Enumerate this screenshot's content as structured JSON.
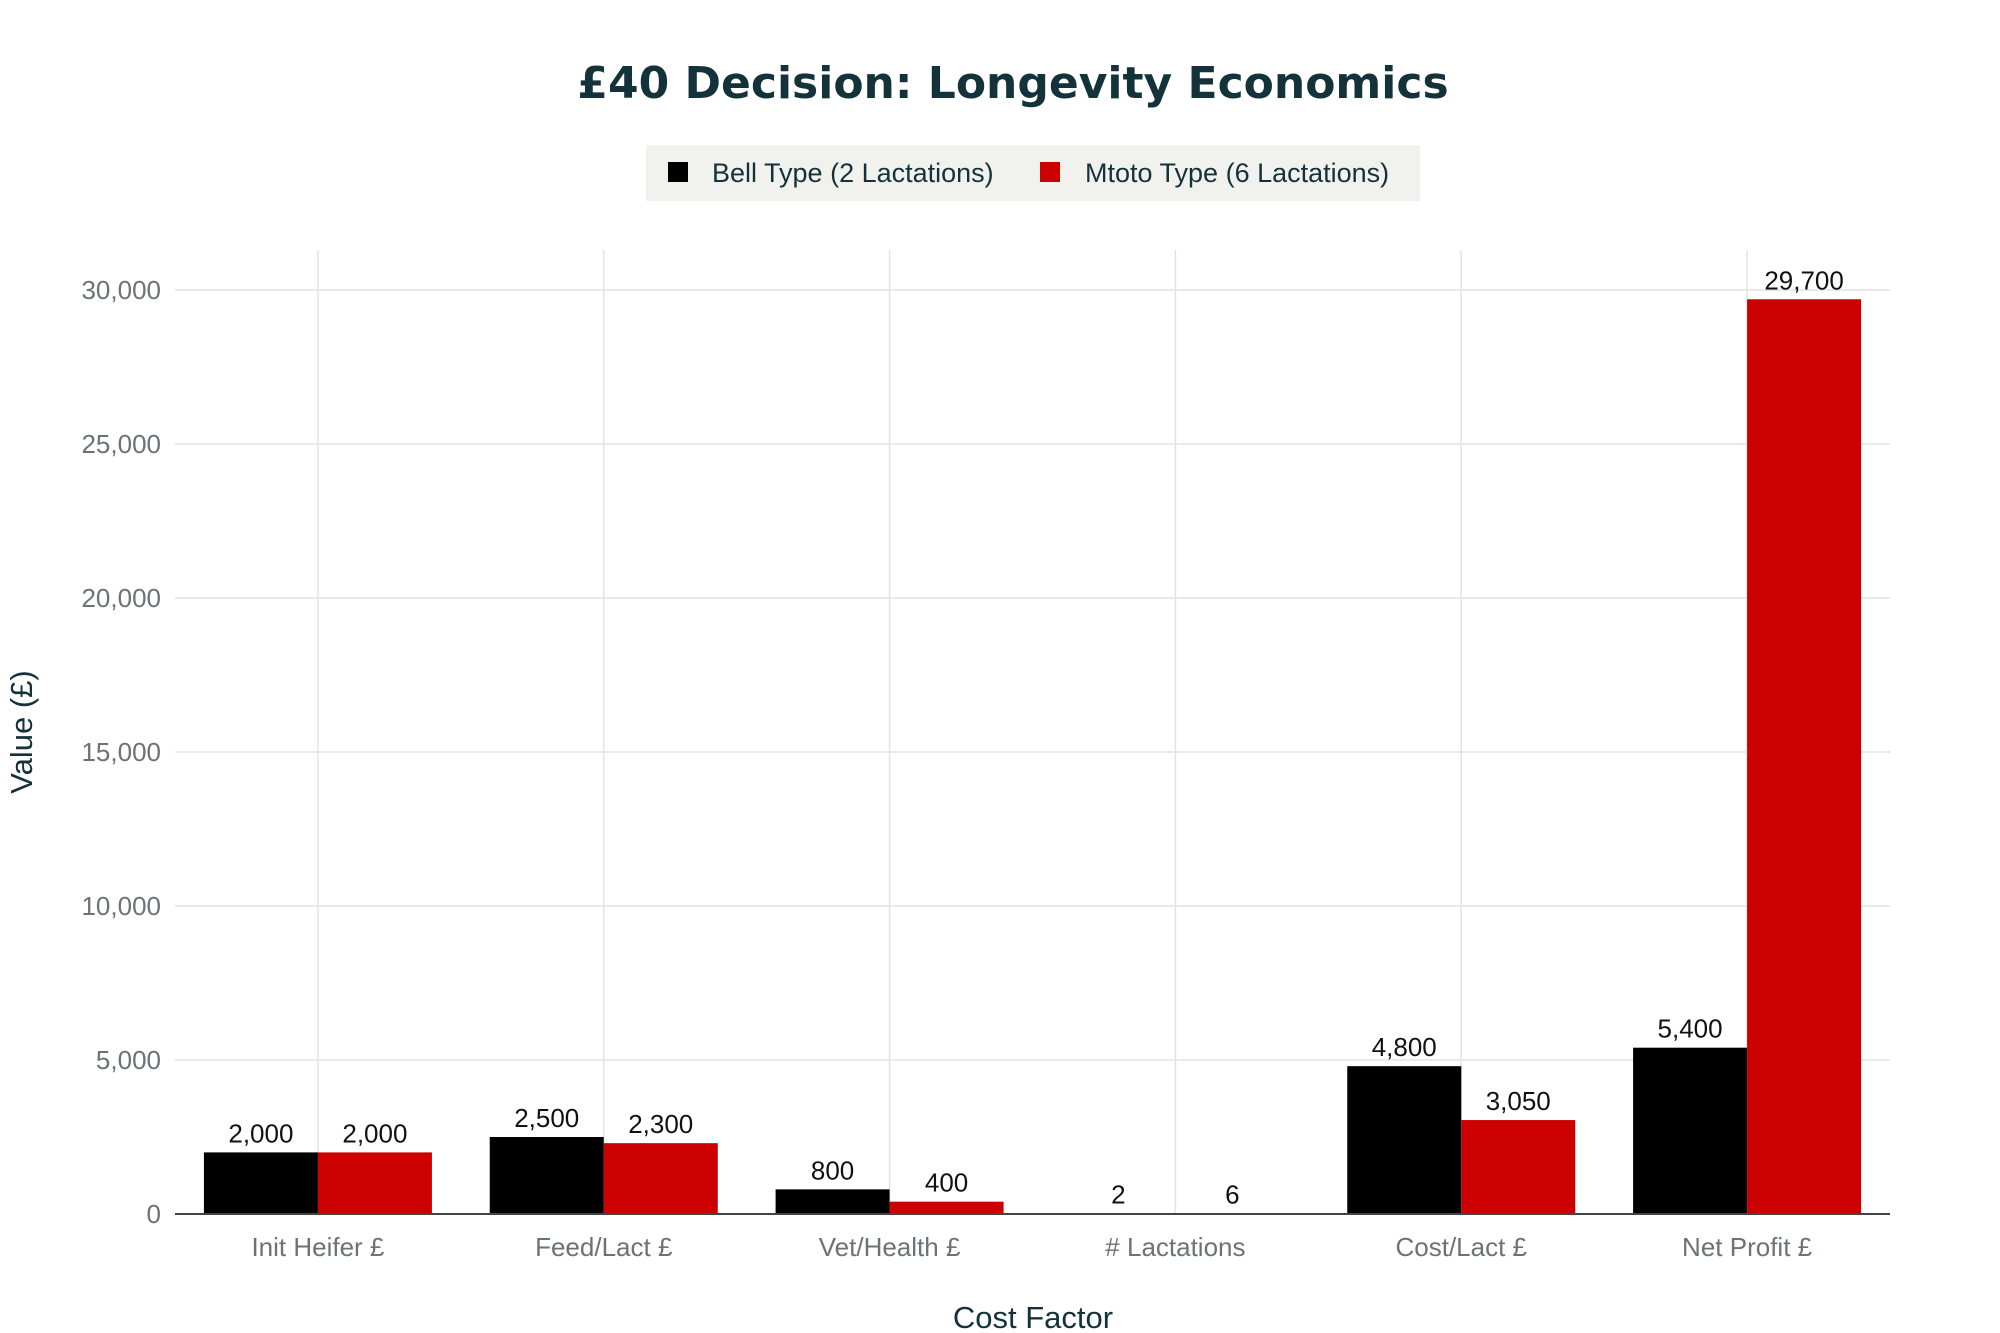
{
  "chart_data": {
    "type": "bar",
    "title": "£40 Decision: Longevity Economics",
    "xlabel": "Cost Factor",
    "ylabel": "Value (£)",
    "categories": [
      "Init Heifer £",
      "Feed/Lact £",
      "Vet/Health £",
      "# Lactations",
      "Cost/Lact £",
      "Net Profit £"
    ],
    "series": [
      {
        "name": "Bell Type (2 Lactations)",
        "color": "#000000",
        "values": [
          2000,
          2500,
          800,
          2,
          4800,
          5400
        ],
        "labels": [
          "2,000",
          "2,500",
          "800",
          "2",
          "4,800",
          "5,400"
        ]
      },
      {
        "name": "Mtoto Type (6 Lactations)",
        "color": "#cc0000",
        "values": [
          2000,
          2300,
          400,
          6,
          3050,
          29700
        ],
        "labels": [
          "2,000",
          "2,300",
          "400",
          "6",
          "3,050",
          "29,700"
        ]
      }
    ],
    "ylim": [
      0,
      31300
    ],
    "yticks": [
      0,
      5000,
      10000,
      15000,
      20000,
      25000,
      30000
    ],
    "ytick_labels": [
      "0",
      "5,000",
      "10,000",
      "15,000",
      "20,000",
      "25,000",
      "30,000"
    ],
    "grid": true,
    "legend_position": "top-center"
  }
}
